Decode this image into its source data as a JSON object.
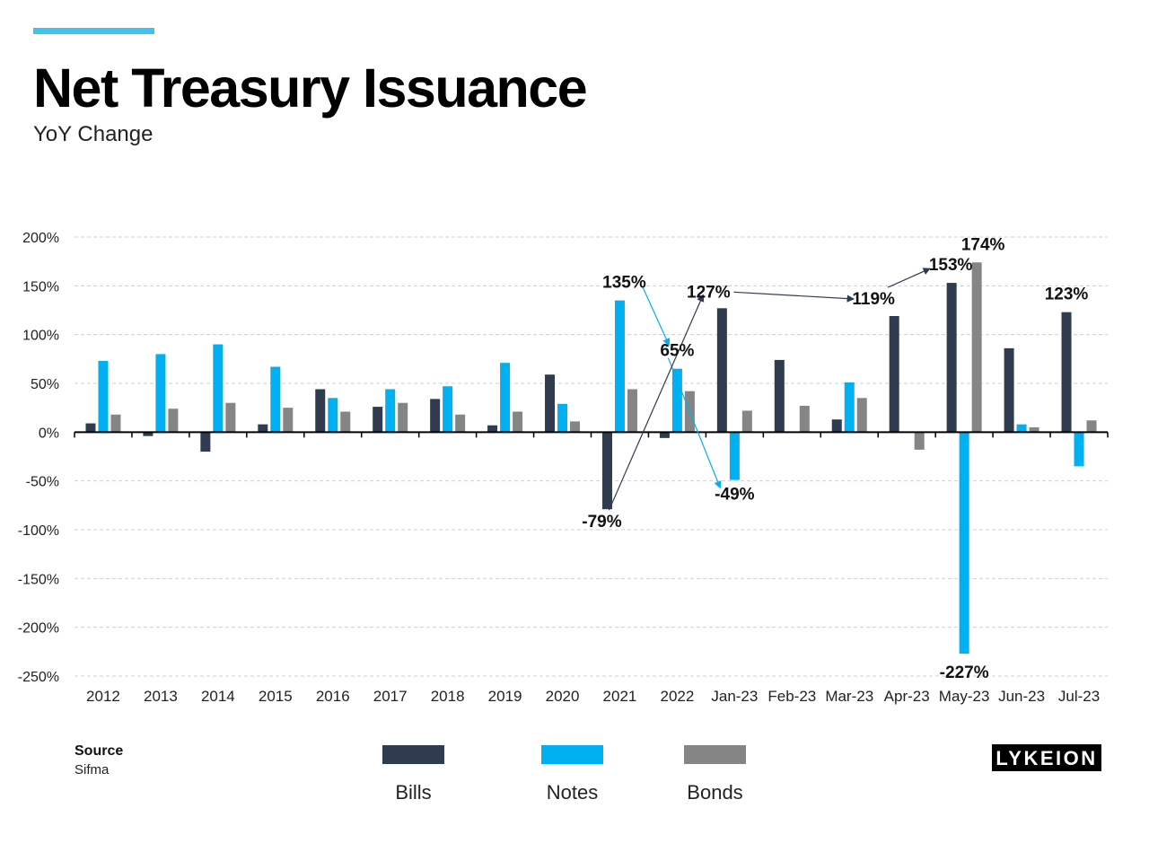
{
  "header": {
    "title": "Net Treasury Issuance",
    "subtitle": "YoY Change"
  },
  "source": {
    "label": "Source",
    "value": "Sifma"
  },
  "logo": {
    "text": "LYKEION"
  },
  "colors": {
    "bills": "#2f3b4e",
    "notes": "#00b0f0",
    "bonds": "#858585",
    "accent": "#3ec3ea"
  },
  "chart_data": {
    "type": "bar",
    "categories": [
      "2012",
      "2013",
      "2014",
      "2015",
      "2016",
      "2017",
      "2018",
      "2019",
      "2020",
      "2021",
      "2022",
      "Jan-23",
      "Feb-23",
      "Mar-23",
      "Apr-23",
      "May-23",
      "Jun-23",
      "Jul-23"
    ],
    "series": [
      {
        "name": "Bills",
        "color": "#2f3b4e",
        "values": [
          9,
          -4,
          -20,
          8,
          44,
          26,
          34,
          7,
          59,
          -79,
          -6,
          127,
          74,
          13,
          119,
          153,
          86,
          123
        ]
      },
      {
        "name": "Notes",
        "color": "#00b0f0",
        "values": [
          73,
          80,
          90,
          67,
          35,
          44,
          47,
          71,
          29,
          135,
          65,
          -49,
          0,
          51,
          0,
          -227,
          8,
          -35
        ]
      },
      {
        "name": "Bonds",
        "color": "#858585",
        "values": [
          18,
          24,
          30,
          25,
          21,
          30,
          18,
          21,
          11,
          44,
          42,
          22,
          27,
          35,
          -18,
          174,
          5,
          12
        ]
      }
    ],
    "ylim": [
      -250,
      200
    ],
    "yticks": [
      200,
      150,
      100,
      50,
      0,
      -50,
      -100,
      -150,
      -200,
      -250
    ],
    "ytick_labels": [
      "200%",
      "150%",
      "100%",
      "50%",
      "0%",
      "-50%",
      "-100%",
      "-150%",
      "-200%",
      "-250%"
    ],
    "grid": true,
    "legend_position": "bottom",
    "annotations": [
      {
        "text": "135%",
        "category": "2021",
        "series": "Notes"
      },
      {
        "text": "65%",
        "category": "2022",
        "series": "Notes"
      },
      {
        "text": "-79%",
        "category": "2021",
        "series": "Bills"
      },
      {
        "text": "127%",
        "category": "Jan-23",
        "series": "Bills"
      },
      {
        "text": "-49%",
        "category": "Jan-23",
        "series": "Notes"
      },
      {
        "text": "119%",
        "category": "Apr-23",
        "series": "Bills"
      },
      {
        "text": "153%",
        "category": "May-23",
        "series": "Bills"
      },
      {
        "text": "174%",
        "category": "May-23",
        "series": "Bonds"
      },
      {
        "text": "-227%",
        "category": "May-23",
        "series": "Notes"
      },
      {
        "text": "123%",
        "category": "Jul-23",
        "series": "Bills"
      }
    ],
    "arrows": [
      {
        "from": "135%",
        "to": "65%",
        "series": "Notes"
      },
      {
        "from": "65%",
        "to": "-49%",
        "series": "Notes"
      },
      {
        "from": "-79%",
        "to": "127%",
        "series": "Bills"
      },
      {
        "from": "127%",
        "to": "119%",
        "series": "Bills"
      },
      {
        "from": "119%",
        "to": "153%",
        "series": "Bills"
      }
    ]
  }
}
